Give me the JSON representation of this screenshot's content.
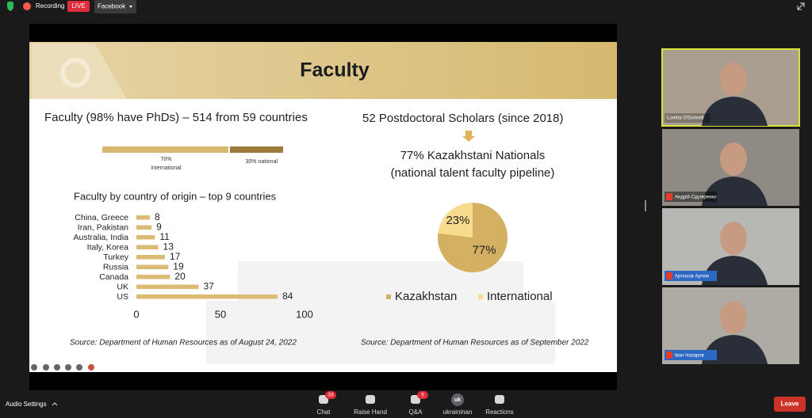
{
  "top_bar": {
    "recording": "Recording",
    "live": "LIVE",
    "stream": "Facebook"
  },
  "slide": {
    "title": "Faculty",
    "faculty_heading": "Faculty (98% have PhDs) – 514 from 59 countries",
    "split_bar": {
      "type": "bar",
      "categories": [
        "international",
        "national"
      ],
      "values": [
        70,
        30
      ],
      "value_labels": [
        "70%",
        "30%"
      ],
      "colors": [
        "#d8b76e",
        "#9c7b3c"
      ]
    },
    "bar_chart": {
      "type": "bar",
      "title": "Faculty by country of origin – top 9 countries",
      "categories": [
        "China, Greece",
        "Iran, Pakistan",
        "Australia, India",
        "Italy, Korea",
        "Turkey",
        "Russia",
        "Canada",
        "UK",
        "US"
      ],
      "values": [
        8,
        9,
        11,
        13,
        17,
        19,
        20,
        37,
        84
      ],
      "color": "#dcbb74",
      "xlim": [
        0,
        100
      ],
      "xticks": [
        0,
        50,
        100
      ]
    },
    "source_left": "Source: Department of Human Resources as of August 24, 2022",
    "postdoc_heading": "52 Postdoctoral Scholars (since 2018)",
    "nationals": "77% Kazakhstani Nationals",
    "pipeline": "(national talent faculty pipeline)",
    "pie_chart": {
      "type": "pie",
      "categories": [
        "Kazakhstan",
        "International"
      ],
      "values": [
        77,
        23
      ],
      "value_labels": [
        "77%",
        "23%"
      ],
      "colors": [
        "#d4b062",
        "#f7dc8f"
      ]
    },
    "source_right": "Source: Department of Human Resources as of September 2022"
  },
  "participants": [
    {
      "name": "Loretta O'Donnell"
    },
    {
      "name": "Андрій Сідляренко"
    },
    {
      "name": "Артюхов Артем"
    },
    {
      "name": "Іван Назаров"
    }
  ],
  "toolbar": {
    "audio": "Audio Settings",
    "items": [
      {
        "label": "Chat",
        "badge": 33
      },
      {
        "label": "Raise Hand"
      },
      {
        "label": "Q&A",
        "badge": 5
      },
      {
        "label": "ukraininan",
        "avatar": "uk"
      },
      {
        "label": "Reactions"
      }
    ],
    "leave": "Leave"
  }
}
